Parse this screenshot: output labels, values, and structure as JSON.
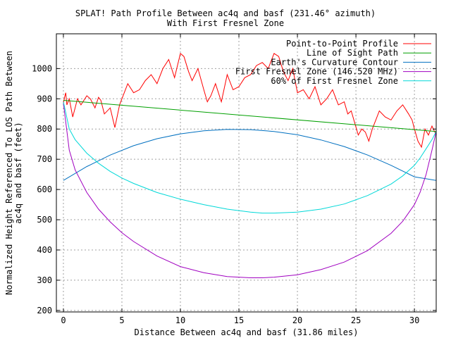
{
  "chart_data": {
    "type": "line",
    "title_line1": "SPLAT! Path Profile Between ac4q and basf (231.46° azimuth)",
    "title_line2": "With First Fresnel Zone",
    "xlabel": "Distance Between ac4q and basf (31.86 miles)",
    "ylabel_line1": "Normalized Height Referenced To LOS Path Between",
    "ylabel_line2": "ac4q and basf (feet)",
    "xlim": [
      -0.6,
      31.86
    ],
    "ylim": [
      195,
      1115
    ],
    "xticks": [
      0,
      5,
      10,
      15,
      20,
      25,
      30
    ],
    "xtick_labels": [
      "0",
      "5",
      "10",
      "15",
      "20",
      "25",
      "30"
    ],
    "yticks": [
      200,
      300,
      400,
      500,
      600,
      700,
      800,
      900,
      1000
    ],
    "ytick_labels": [
      "200",
      "300",
      "400",
      "500",
      "600",
      "700",
      "800",
      "900",
      "1000"
    ],
    "grid": true,
    "legend_position": "top-right",
    "series": [
      {
        "name": "Point-to-Point Profile",
        "color": "#ff0000",
        "x": [
          0,
          0.1,
          0.2,
          0.3,
          0.5,
          0.8,
          1.0,
          1.2,
          1.5,
          2.0,
          2.3,
          2.7,
          3.0,
          3.2,
          3.5,
          4.0,
          4.4,
          4.8,
          5.0,
          5.5,
          6.0,
          6.5,
          7.0,
          7.5,
          8.0,
          8.5,
          9.0,
          9.5,
          10.0,
          10.3,
          10.7,
          11.0,
          11.5,
          12.0,
          12.3,
          12.6,
          13.0,
          13.5,
          14.0,
          14.5,
          15.0,
          15.5,
          16.0,
          16.5,
          17.0,
          17.5,
          18.0,
          18.4,
          18.8,
          19.2,
          19.6,
          20.0,
          20.5,
          21.0,
          21.5,
          22.0,
          22.5,
          23.0,
          23.5,
          24.0,
          24.3,
          24.6,
          24.9,
          25.2,
          25.5,
          25.8,
          26.1,
          26.4,
          26.7,
          27.0,
          27.5,
          28.0,
          28.5,
          29.0,
          29.5,
          29.8,
          30.0,
          30.3,
          30.6,
          30.9,
          31.2,
          31.5,
          31.86
        ],
        "y": [
          885,
          905,
          920,
          880,
          900,
          840,
          870,
          900,
          880,
          910,
          900,
          870,
          905,
          895,
          850,
          870,
          805,
          880,
          900,
          950,
          920,
          930,
          960,
          980,
          950,
          1000,
          1030,
          970,
          1050,
          1040,
          990,
          960,
          1000,
          930,
          890,
          910,
          950,
          890,
          980,
          930,
          940,
          970,
          980,
          1010,
          1020,
          1000,
          1050,
          1040,
          990,
          960,
          1000,
          920,
          930,
          900,
          940,
          880,
          900,
          930,
          880,
          890,
          850,
          860,
          820,
          780,
          800,
          790,
          760,
          800,
          830,
          860,
          840,
          830,
          860,
          880,
          850,
          830,
          800,
          760,
          740,
          800,
          780,
          810,
          780
        ]
      },
      {
        "name": "Line of Sight Path",
        "color": "#00a000",
        "x": [
          0,
          31.86
        ],
        "y": [
          895,
          792
        ]
      },
      {
        "name": "Earth's Curvature Contour",
        "color": "#0070c0",
        "x": [
          0,
          2,
          4,
          6,
          8,
          10,
          12,
          14,
          16,
          18,
          20,
          22,
          24,
          26,
          28,
          30,
          31.86
        ],
        "y": [
          630,
          676,
          714,
          745,
          768,
          784,
          794,
          799,
          798,
          792,
          781,
          764,
          742,
          714,
          680,
          642,
          630
        ]
      },
      {
        "name": "First Fresnel Zone (146.520 MHz)",
        "color": "#a000c0",
        "x": [
          0,
          0.5,
          1,
          2,
          3,
          4,
          5,
          6,
          8,
          10,
          12,
          14,
          16,
          17,
          18,
          20,
          22,
          24,
          26,
          28,
          29,
          30,
          30.5,
          31,
          31.5,
          31.86
        ],
        "y": [
          885,
          730,
          665,
          590,
          535,
          493,
          457,
          428,
          380,
          345,
          325,
          312,
          308,
          308,
          310,
          318,
          335,
          360,
          398,
          455,
          495,
          550,
          592,
          650,
          730,
          792
        ]
      },
      {
        "name": "60% of First Fresnel Zone",
        "color": "#00d8d8",
        "x": [
          0,
          0.5,
          1,
          2,
          3,
          4,
          5,
          6,
          8,
          10,
          12,
          14,
          16,
          17,
          18,
          20,
          22,
          24,
          26,
          28,
          29,
          30,
          30.5,
          31,
          31.5,
          31.86
        ],
        "y": [
          890,
          800,
          765,
          720,
          687,
          660,
          638,
          620,
          590,
          568,
          550,
          535,
          525,
          522,
          522,
          525,
          535,
          552,
          580,
          618,
          645,
          680,
          705,
          735,
          765,
          792
        ]
      }
    ]
  }
}
